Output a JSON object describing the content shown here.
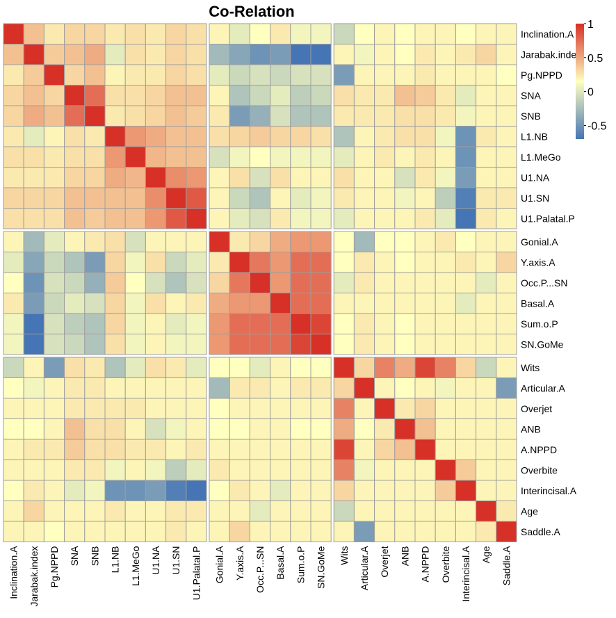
{
  "chart_data": {
    "type": "heatmap",
    "title": "Co-Relation",
    "labels": [
      "Inclination.A",
      "Jarabak.index",
      "Pg.NPPD",
      "SNA",
      "SNB",
      "L1.NB",
      "L1.MeGo",
      "U1.NA",
      "U1.SN",
      "U1.Palatal.P",
      "Gonial.A",
      "Y.axis.A",
      "Occ.P...SN",
      "Basal.A",
      "Sum.o.P",
      "SN.GoMe",
      "Wits",
      "Articular.A",
      "Overjet",
      "ANB",
      "A.NPPD",
      "Overbite",
      "Interincisal.A",
      "Age",
      "Saddle.A"
    ],
    "groups": [
      10,
      6,
      9
    ],
    "legend": {
      "ticks": [
        1,
        0.5,
        0,
        -0.5
      ],
      "range": [
        -0.7,
        1
      ],
      "colors": {
        "low": "#4575b4",
        "mid": "#ffffbf",
        "high": "#d73027"
      }
    },
    "values": [
      [
        1.0,
        0.3,
        0.1,
        0.2,
        0.2,
        0.1,
        0.15,
        0.1,
        0.2,
        0.15,
        0.05,
        -0.1,
        0.0,
        0.1,
        -0.05,
        -0.05,
        -0.2,
        0.0,
        0.05,
        0.0,
        0.05,
        0.05,
        0.0,
        0.05,
        0.05
      ],
      [
        0.3,
        1.0,
        0.25,
        0.3,
        0.4,
        -0.1,
        0.15,
        0.1,
        0.2,
        0.15,
        -0.35,
        -0.45,
        -0.55,
        -0.5,
        -0.7,
        -0.7,
        0.05,
        -0.05,
        0.05,
        0.0,
        0.1,
        0.05,
        0.1,
        0.2,
        0.05
      ],
      [
        0.1,
        0.25,
        1.0,
        0.2,
        0.3,
        0.05,
        0.1,
        0.1,
        0.2,
        0.15,
        -0.1,
        -0.2,
        -0.15,
        -0.2,
        -0.15,
        -0.15,
        -0.5,
        0.05,
        0.05,
        0.05,
        0.1,
        0.05,
        0.05,
        0.05,
        0.0
      ],
      [
        0.2,
        0.3,
        0.2,
        1.0,
        0.7,
        0.15,
        0.15,
        0.2,
        0.3,
        0.3,
        0.05,
        -0.3,
        -0.2,
        -0.1,
        -0.25,
        -0.2,
        0.15,
        0.1,
        0.1,
        0.3,
        0.25,
        0.1,
        -0.1,
        0.05,
        0.05
      ],
      [
        0.2,
        0.4,
        0.3,
        0.7,
        1.0,
        0.1,
        0.15,
        0.2,
        0.3,
        0.25,
        0.1,
        -0.5,
        -0.4,
        -0.15,
        -0.3,
        -0.3,
        0.1,
        0.1,
        0.1,
        0.15,
        0.15,
        0.1,
        -0.05,
        0.05,
        0.05
      ],
      [
        0.1,
        -0.1,
        0.05,
        0.15,
        0.1,
        1.0,
        0.5,
        0.4,
        0.3,
        0.3,
        0.15,
        0.2,
        0.25,
        0.2,
        0.2,
        0.15,
        -0.3,
        0.05,
        0.1,
        0.15,
        0.15,
        -0.05,
        -0.55,
        0.1,
        0.05
      ],
      [
        0.15,
        0.15,
        0.1,
        0.15,
        0.15,
        0.5,
        1.0,
        0.35,
        0.3,
        0.3,
        -0.15,
        -0.05,
        0.0,
        -0.05,
        -0.05,
        -0.05,
        -0.1,
        0.05,
        0.1,
        0.05,
        0.1,
        0.05,
        -0.55,
        0.05,
        0.05
      ],
      [
        0.1,
        0.1,
        0.1,
        0.2,
        0.2,
        0.4,
        0.35,
        1.0,
        0.55,
        0.5,
        0.05,
        0.15,
        -0.15,
        0.15,
        0.05,
        0.05,
        0.15,
        0.05,
        0.05,
        -0.15,
        0.1,
        -0.05,
        -0.5,
        0.05,
        0.05
      ],
      [
        0.2,
        0.2,
        0.2,
        0.3,
        0.3,
        0.3,
        0.3,
        0.55,
        1.0,
        0.8,
        0.05,
        -0.2,
        -0.3,
        0.05,
        -0.1,
        -0.05,
        0.1,
        0.05,
        0.05,
        -0.05,
        0.05,
        -0.25,
        -0.65,
        0.1,
        0.1
      ],
      [
        0.15,
        0.15,
        0.15,
        0.3,
        0.25,
        0.3,
        0.3,
        0.5,
        0.8,
        1.0,
        0.05,
        -0.1,
        -0.15,
        0.1,
        -0.05,
        -0.05,
        -0.1,
        0.05,
        0.05,
        0.05,
        0.1,
        -0.1,
        -0.7,
        0.1,
        0.05
      ],
      [
        0.05,
        -0.35,
        -0.1,
        0.05,
        0.1,
        0.15,
        -0.15,
        0.05,
        0.05,
        0.05,
        1.0,
        0.1,
        0.2,
        0.4,
        0.5,
        0.5,
        0.0,
        -0.35,
        0.0,
        0.0,
        0.05,
        0.1,
        0.0,
        0.05,
        0.05
      ],
      [
        -0.1,
        -0.45,
        -0.2,
        -0.3,
        -0.5,
        0.2,
        -0.05,
        0.15,
        -0.2,
        -0.1,
        0.1,
        1.0,
        0.65,
        0.5,
        0.7,
        0.7,
        0.0,
        0.1,
        0.05,
        0.0,
        0.05,
        0.05,
        0.1,
        0.05,
        0.2
      ],
      [
        0.0,
        -0.55,
        -0.15,
        -0.2,
        -0.4,
        0.25,
        0.0,
        -0.15,
        -0.3,
        -0.15,
        0.2,
        0.65,
        1.0,
        0.5,
        0.7,
        0.7,
        -0.1,
        0.1,
        0.05,
        0.05,
        0.05,
        0.05,
        0.05,
        -0.1,
        0.05
      ],
      [
        0.1,
        -0.5,
        -0.2,
        -0.1,
        -0.15,
        0.2,
        -0.05,
        0.15,
        0.05,
        0.1,
        0.4,
        0.5,
        0.5,
        1.0,
        0.7,
        0.7,
        0.05,
        0.05,
        0.05,
        0.05,
        0.05,
        0.05,
        -0.1,
        0.05,
        0.05
      ],
      [
        -0.05,
        -0.7,
        -0.15,
        -0.25,
        -0.3,
        0.2,
        -0.05,
        0.05,
        -0.1,
        -0.05,
        0.5,
        0.7,
        0.7,
        0.7,
        1.0,
        0.9,
        0.0,
        0.1,
        0.05,
        0.0,
        0.05,
        0.05,
        0.05,
        0.05,
        0.05
      ],
      [
        -0.05,
        -0.7,
        -0.15,
        -0.2,
        -0.3,
        0.15,
        -0.05,
        0.05,
        -0.05,
        -0.05,
        0.5,
        0.7,
        0.7,
        0.7,
        0.9,
        1.0,
        0.0,
        0.1,
        0.05,
        0.0,
        0.05,
        0.05,
        0.05,
        0.05,
        0.05
      ],
      [
        -0.2,
        0.05,
        -0.5,
        0.15,
        0.1,
        -0.3,
        -0.1,
        0.15,
        0.1,
        -0.1,
        0.0,
        0.0,
        -0.1,
        0.05,
        0.0,
        0.0,
        1.0,
        0.2,
        0.6,
        0.4,
        0.9,
        0.6,
        0.2,
        -0.2,
        0.05
      ],
      [
        0.0,
        -0.05,
        0.05,
        0.1,
        0.1,
        0.05,
        0.05,
        0.05,
        0.05,
        0.05,
        -0.35,
        0.1,
        0.1,
        0.05,
        0.1,
        0.1,
        0.2,
        1.0,
        0.05,
        0.0,
        0.05,
        -0.05,
        0.05,
        0.05,
        -0.5
      ],
      [
        0.05,
        0.05,
        0.05,
        0.1,
        0.1,
        0.1,
        0.1,
        0.05,
        0.05,
        0.05,
        0.0,
        0.05,
        0.05,
        0.05,
        0.05,
        0.05,
        0.6,
        0.05,
        1.0,
        0.1,
        0.2,
        0.05,
        0.05,
        0.05,
        0.05
      ],
      [
        0.0,
        0.0,
        0.05,
        0.3,
        0.15,
        0.15,
        0.05,
        -0.15,
        -0.05,
        0.05,
        0.0,
        0.0,
        0.05,
        0.05,
        0.0,
        0.0,
        0.4,
        0.0,
        0.1,
        1.0,
        0.3,
        0.05,
        0.05,
        0.05,
        0.05
      ],
      [
        0.05,
        0.1,
        0.1,
        0.25,
        0.15,
        0.15,
        0.1,
        0.1,
        0.05,
        0.1,
        0.05,
        0.05,
        0.05,
        0.05,
        0.05,
        0.05,
        0.9,
        0.05,
        0.2,
        0.3,
        1.0,
        0.05,
        0.05,
        0.05,
        0.05
      ],
      [
        0.05,
        0.05,
        0.05,
        0.1,
        0.1,
        -0.05,
        0.05,
        -0.05,
        -0.25,
        -0.1,
        0.1,
        0.05,
        0.05,
        0.05,
        0.05,
        0.05,
        0.6,
        -0.05,
        0.05,
        0.05,
        0.05,
        1.0,
        0.25,
        0.05,
        0.05
      ],
      [
        0.0,
        0.1,
        0.05,
        -0.1,
        -0.05,
        -0.55,
        -0.55,
        -0.5,
        -0.65,
        -0.7,
        0.0,
        0.1,
        0.05,
        -0.1,
        0.05,
        0.05,
        0.2,
        0.05,
        0.05,
        0.05,
        0.05,
        0.25,
        1.0,
        0.05,
        0.05
      ],
      [
        0.05,
        0.2,
        0.05,
        0.05,
        0.05,
        0.1,
        0.05,
        0.05,
        0.1,
        0.1,
        0.05,
        0.05,
        -0.1,
        0.05,
        0.05,
        0.05,
        -0.2,
        0.05,
        0.05,
        0.05,
        0.05,
        0.05,
        0.05,
        1.0,
        0.1
      ],
      [
        0.05,
        0.05,
        0.0,
        0.05,
        0.05,
        0.05,
        0.05,
        0.05,
        0.1,
        0.05,
        0.05,
        0.2,
        0.05,
        0.05,
        0.05,
        0.05,
        0.05,
        -0.5,
        0.05,
        0.05,
        0.05,
        0.05,
        0.05,
        0.1,
        1.0
      ]
    ]
  }
}
